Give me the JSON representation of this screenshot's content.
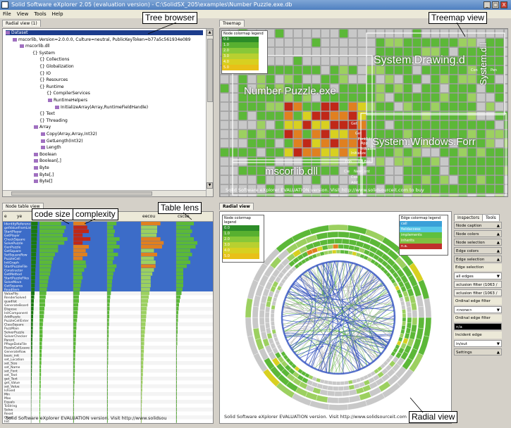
{
  "window": {
    "title": "Solid Software eXplorer 2.05 (evaluation version) - C:\\SolidSX_205\\examples\\Number Puzzle.exe.db",
    "controls": [
      "_",
      "□",
      "X"
    ]
  },
  "menu": [
    "File",
    "View",
    "Tools",
    "Help"
  ],
  "tabs": {
    "radial_top": "Radial view (1)",
    "treemap": "Treemap",
    "table": "Node table view",
    "radial": "Radial view",
    "inspectors": "Inspectors",
    "tools": "Tools"
  },
  "tree": [
    {
      "text": "Dataset",
      "depth": 0,
      "sel": true
    },
    {
      "text": "mscorlib, Version=2.0.0.0, Culture=neutral, PublicKeyToken=b77a5c561934e089",
      "depth": 1
    },
    {
      "text": "mscorlib.dll",
      "depth": 2
    },
    {
      "text": "{} System",
      "depth": 3
    },
    {
      "text": "{} Collections",
      "depth": 4
    },
    {
      "text": "{} Globalization",
      "depth": 4
    },
    {
      "text": "{} IO",
      "depth": 4
    },
    {
      "text": "{} Resources",
      "depth": 4
    },
    {
      "text": "{} Runtime",
      "depth": 4
    },
    {
      "text": "{} CompilerServices",
      "depth": 5
    },
    {
      "text": "RuntimeHelpers",
      "depth": 6
    },
    {
      "text": "InitializeArray(Array,RuntimeFieldHandle)",
      "depth": 7
    },
    {
      "text": "{} Text",
      "depth": 4
    },
    {
      "text": "{} Threading",
      "depth": 4
    },
    {
      "text": "Array",
      "depth": 4
    },
    {
      "text": "Copy(Array,Array,Int32)",
      "depth": 5
    },
    {
      "text": "GetLength(Int32)",
      "depth": 5
    },
    {
      "text": "Length",
      "depth": 5
    },
    {
      "text": "Boolean",
      "depth": 4
    },
    {
      "text": "Boolean[,]",
      "depth": 4
    },
    {
      "text": "Byte",
      "depth": 4
    },
    {
      "text": "Byte[,]",
      "depth": 4
    },
    {
      "text": "Byte[]",
      "depth": 4
    }
  ],
  "callouts": {
    "tree": "Tree browser",
    "treemap": "Treemap view",
    "table": "Table lens",
    "code": "code size",
    "complexity": "complexity",
    "radial": "Radial view"
  },
  "legend": {
    "title": "Node colormap legend",
    "values": [
      "0.0",
      "1.0",
      "2.0",
      "3.0",
      "4.0",
      "5.0"
    ]
  },
  "edge_legend": {
    "title": "Edge colormap legend",
    "items": [
      "call",
      "fieldaccess",
      "implements",
      "inherits",
      "n.a."
    ],
    "colors": [
      "#3aa0d8",
      "#58c8e8",
      "#60c040",
      "#80c040",
      "#c0302c"
    ]
  },
  "treemap_labels": [
    "System.Drawing.d",
    "System.dll",
    "Number Puzzle.exe",
    "System.Windows.Forr",
    "mscorlib.dll"
  ],
  "treemap_small": [
    "Con",
    "Cla",
    "Pen",
    "Get",
    "Fon",
    "op_Fon",
    "Cle",
    "NewCont",
    "Coo",
    "Add",
    "Get",
    "FontAdd",
    "App",
    "Initialize",
    "Initialize"
  ],
  "eval_note": "Solid Software eXplorer EVALUATION version. Visit http://www.solidsourceit.com to buy",
  "eval_note2": "Solid Software eXplorer EVALUATION version. Visit http://www.solidsourceit.com",
  "eval_note3": "Solid Software eXplorer EVALUATION version. Visit http://www.solidsou",
  "table_cols": [
    "e",
    "ye",
    "",
    "",
    "",
    "u",
    "eecou",
    "cscso"
  ],
  "table_rows": [
    {
      "name": "IdentityReference",
      "bars": [
        0.95,
        0.7,
        0.4,
        0.3,
        0.6,
        0.5
      ],
      "sel": true
    },
    {
      "name": "getValueFromList",
      "bars": [
        0.9,
        0.85,
        0.45,
        0.2,
        0.5,
        0.4
      ],
      "sel": true
    },
    {
      "name": "StartPlayer",
      "bars": [
        0.88,
        0.8,
        0.5,
        0.25,
        0.5,
        0.45
      ],
      "sel": true
    },
    {
      "name": "GetPlayer",
      "bars": [
        0.85,
        0.75,
        0.3,
        0.22,
        0.48,
        0.4
      ],
      "sel": true
    },
    {
      "name": "CheckSquare",
      "bars": [
        0.83,
        0.9,
        0.55,
        0.4,
        0.6,
        0.5
      ],
      "sel": true
    },
    {
      "name": "SolvePuzzle",
      "bars": [
        0.8,
        0.8,
        0.3,
        0.3,
        0.7,
        0.6
      ],
      "sel": true
    },
    {
      "name": "GenPuzzle",
      "bars": [
        0.78,
        0.6,
        0.5,
        0.4,
        0.65,
        0.55
      ],
      "sel": true
    },
    {
      "name": "GetSquare",
      "bars": [
        0.75,
        0.6,
        0.4,
        0.2,
        0.4,
        0.4
      ],
      "sel": true
    },
    {
      "name": "SetSquareRow",
      "bars": [
        0.72,
        0.5,
        0.45,
        0.35,
        0.5,
        0.45
      ],
      "sel": true
    },
    {
      "name": "PuzzleCell",
      "bars": [
        0.7,
        0.45,
        0.3,
        0.22,
        0.4,
        0.35
      ],
      "sel": true
    },
    {
      "name": "InitGraph",
      "bars": [
        0.68,
        0.4,
        0.4,
        0.18,
        0.45,
        0.4
      ],
      "sel": true
    },
    {
      "name": "StartPuzzleFile",
      "bars": [
        0.65,
        0.38,
        0.42,
        0.3,
        0.45,
        0.3
      ],
      "sel": true
    },
    {
      "name": "Constructor",
      "bars": [
        0.62,
        0.36,
        0.35,
        0.25,
        0.4,
        0.2
      ],
      "sel": true
    },
    {
      "name": "GetMethod",
      "bars": [
        0.6,
        0.34,
        0.28,
        0.2,
        0.35,
        0.2
      ],
      "sel": true
    },
    {
      "name": "StartPuzzleFiles",
      "bars": [
        0.58,
        0.3,
        0.3,
        0.18,
        0.3,
        0.2
      ],
      "sel": true
    },
    {
      "name": "SolveMove",
      "bars": [
        0.56,
        0.28,
        0.26,
        0.16,
        0.3,
        0.2
      ],
      "sel": true
    },
    {
      "name": "GetSquares",
      "bars": [
        0.54,
        0.26,
        0.24,
        0.15,
        0.3,
        0.2
      ],
      "sel": true
    },
    {
      "name": "ReadItem",
      "bars": [
        0.52,
        0.24,
        0.22,
        0.14,
        0.28,
        0.18
      ],
      "sel": true
    },
    {
      "name": "ValueFile",
      "bars": [
        0.5,
        0.22,
        0.2,
        0.12,
        0.26,
        0.15
      ],
      "sel": false
    },
    {
      "name": "RenderSolved",
      "bars": [
        0.45,
        0.2,
        0.18,
        0.1,
        0.24,
        0.12
      ],
      "sel": false
    },
    {
      "name": "quadlist",
      "bars": [
        0.4,
        0.18,
        0.18,
        0.09,
        0.22,
        0.1
      ],
      "sel": false
    },
    {
      "name": "GenerateBoard",
      "bars": [
        0.38,
        0.18,
        0.16,
        0.08,
        0.2,
        0.08
      ],
      "sel": false
    },
    {
      "name": "Dispose",
      "bars": [
        0.36,
        0.16,
        0.15,
        0.08,
        0.18,
        0.07
      ],
      "sel": false
    },
    {
      "name": "InitComponent",
      "bars": [
        0.33,
        0.15,
        0.14,
        0.07,
        0.17,
        0.06
      ],
      "sel": false
    },
    {
      "name": "AddPuzzle",
      "bars": [
        0.3,
        0.14,
        0.13,
        0.07,
        0.16,
        0.05
      ],
      "sel": false
    },
    {
      "name": "PuzzleCellEnter",
      "bars": [
        0.28,
        0.12,
        0.12,
        0.06,
        0.15,
        0.05
      ],
      "sel": false
    },
    {
      "name": "ClassSquare",
      "bars": [
        0.26,
        0.11,
        0.1,
        0.06,
        0.14,
        0.04
      ],
      "sel": false
    },
    {
      "name": "PuzzMain",
      "bars": [
        0.25,
        0.1,
        0.1,
        0.05,
        0.13,
        0.04
      ],
      "sel": false
    },
    {
      "name": "SolverPuzzle",
      "bars": [
        0.24,
        0.1,
        0.09,
        0.05,
        0.12,
        0.04
      ],
      "sel": false
    },
    {
      "name": "SolverChecker",
      "bars": [
        0.22,
        0.1,
        0.09,
        0.05,
        0.11,
        0.03
      ],
      "sel": false
    },
    {
      "name": "Parent",
      "bars": [
        0.2,
        0.09,
        0.08,
        0.04,
        0.1,
        0.03
      ],
      "sel": false
    },
    {
      "name": "PPageDataFile",
      "bars": [
        0.19,
        0.08,
        0.08,
        0.04,
        0.1,
        0.03
      ],
      "sel": false
    },
    {
      "name": "PuzzleCellLeave",
      "bars": [
        0.18,
        0.08,
        0.07,
        0.04,
        0.09,
        0.02
      ],
      "sel": false
    },
    {
      "name": "GenerateRow",
      "bars": [
        0.17,
        0.07,
        0.07,
        0.03,
        0.09,
        0.02
      ],
      "sel": false
    },
    {
      "name": "basic_init",
      "bars": [
        0.16,
        0.07,
        0.06,
        0.03,
        0.08,
        0.02
      ],
      "sel": false
    },
    {
      "name": "set_Location",
      "bars": [
        0.15,
        0.06,
        0.06,
        0.03,
        0.08,
        0.02
      ],
      "sel": false
    },
    {
      "name": "set_Size",
      "bars": [
        0.14,
        0.06,
        0.05,
        0.03,
        0.07,
        0.02
      ],
      "sel": false
    },
    {
      "name": "set_Name",
      "bars": [
        0.13,
        0.05,
        0.05,
        0.02,
        0.07,
        0.02
      ],
      "sel": false
    },
    {
      "name": "set_Font",
      "bars": [
        0.12,
        0.05,
        0.05,
        0.02,
        0.06,
        0.01
      ],
      "sel": false
    },
    {
      "name": "set_Text",
      "bars": [
        0.11,
        0.05,
        0.04,
        0.02,
        0.06,
        0.01
      ],
      "sel": false
    },
    {
      "name": "get_Text",
      "bars": [
        0.1,
        0.04,
        0.04,
        0.02,
        0.05,
        0.01
      ],
      "sel": false
    },
    {
      "name": "get_Value",
      "bars": [
        0.09,
        0.04,
        0.04,
        0.02,
        0.05,
        0.01
      ],
      "sel": false
    },
    {
      "name": "set_Value",
      "bars": [
        0.08,
        0.04,
        0.03,
        0.02,
        0.04,
        0.01
      ],
      "sel": false
    },
    {
      "name": "IsFixed",
      "bars": [
        0.07,
        0.03,
        0.03,
        0.01,
        0.04,
        0.01
      ],
      "sel": false
    },
    {
      "name": "Min",
      "bars": [
        0.06,
        0.03,
        0.03,
        0.01,
        0.03,
        0.01
      ],
      "sel": false
    },
    {
      "name": "Max",
      "bars": [
        0.06,
        0.03,
        0.02,
        0.01,
        0.03,
        0.01
      ],
      "sel": false
    },
    {
      "name": "Equals",
      "bars": [
        0.05,
        0.02,
        0.02,
        0.01,
        0.03,
        0.01
      ],
      "sel": false
    },
    {
      "name": "ToString",
      "bars": [
        0.05,
        0.02,
        0.02,
        0.01,
        0.02,
        0.01
      ],
      "sel": false
    },
    {
      "name": "Solve",
      "bars": [
        0.04,
        0.02,
        0.02,
        0.01,
        0.02,
        0.01
      ],
      "sel": false
    },
    {
      "name": "Reset",
      "bars": [
        0.04,
        0.02,
        0.01,
        0.01,
        0.02,
        0.01
      ],
      "sel": false
    },
    {
      "name": "Clear",
      "bars": [
        0.03,
        0.01,
        0.01,
        0.01,
        0.02,
        0.01
      ],
      "sel": false
    },
    {
      "name": "Init",
      "bars": [
        0.03,
        0.01,
        0.01,
        0.01,
        0.01,
        0.01
      ],
      "sel": false
    }
  ],
  "inspector": [
    {
      "label": "Node caption",
      "kind": "header"
    },
    {
      "label": "Node colors",
      "kind": "header"
    },
    {
      "label": "Node selection",
      "kind": "header"
    },
    {
      "label": "Edge colors",
      "kind": "header"
    },
    {
      "label": "Edge selection",
      "kind": "header"
    },
    {
      "label": "Edge selection",
      "kind": "label"
    },
    {
      "label": "all edges",
      "kind": "select"
    },
    {
      "label": "xclusion filter (1063 /",
      "kind": "button"
    },
    {
      "label": "xclusion filter (1063 /",
      "kind": "button"
    },
    {
      "label": "Ordinal edge filter",
      "kind": "label"
    },
    {
      "label": "<none>",
      "kind": "select"
    },
    {
      "label": "Ordinal edge filter",
      "kind": "label"
    },
    {
      "label": "n/a",
      "kind": "dark"
    },
    {
      "label": "Incident edge",
      "kind": "label"
    },
    {
      "label": "in/out",
      "kind": "select"
    },
    {
      "label": "Settings",
      "kind": "header"
    }
  ],
  "colors": {
    "green": "#5cb838",
    "lightgreen": "#9cd060",
    "yellow": "#d8d020",
    "orange": "#e08020",
    "red": "#c02818",
    "blue": "#3050c0",
    "gray": "#c8c8c8"
  }
}
